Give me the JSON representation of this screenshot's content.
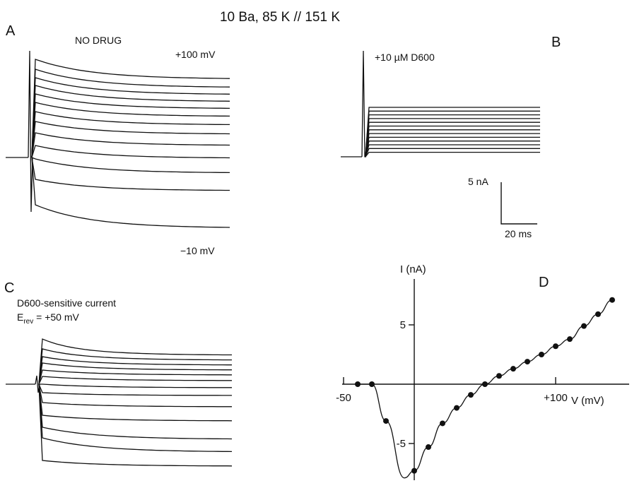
{
  "figure": {
    "title": "10 Ba, 85 K // 151 K",
    "colors": {
      "ink": "#111111",
      "background": "#ffffff"
    }
  },
  "panels": {
    "A": {
      "letter": "A",
      "label": "NO DRUG",
      "top_voltage": "+100 mV",
      "bottom_voltage": "−10 mV"
    },
    "B": {
      "letter": "B",
      "label": "+10 µM D600"
    },
    "scale_bar": {
      "current": "5 nA",
      "time": "20 ms"
    },
    "C": {
      "letter": "C",
      "label_line1": "D600-sensitive current",
      "label_line2": "E",
      "label_line2_sub": "rev",
      "label_line2_rest": " = +50 mV"
    },
    "D": {
      "letter": "D"
    }
  },
  "chart_data": {
    "type": "line",
    "panel": "D",
    "xlabel": "V (mV)",
    "ylabel": "I (nA)",
    "x_ticks": [
      -50,
      100
    ],
    "x_tick_labels": [
      "-50",
      "+100"
    ],
    "y_ticks": [
      5,
      -5
    ],
    "y_tick_labels": [
      "5",
      "-5"
    ],
    "xlim": [
      -55,
      150
    ],
    "ylim": [
      -8.2,
      8.5
    ],
    "series": [
      {
        "points": [
          {
            "x": -40,
            "y": 0
          },
          {
            "x": -30,
            "y": 0
          },
          {
            "x": -20,
            "y": -3.1
          },
          {
            "x": 0,
            "y": -7.3
          },
          {
            "x": 10,
            "y": -5.3
          },
          {
            "x": 20,
            "y": -3.3
          },
          {
            "x": 30,
            "y": -2.0
          },
          {
            "x": 40,
            "y": -0.9
          },
          {
            "x": 50,
            "y": 0
          },
          {
            "x": 60,
            "y": 0.7
          },
          {
            "x": 70,
            "y": 1.3
          },
          {
            "x": 80,
            "y": 1.9
          },
          {
            "x": 90,
            "y": 2.5
          },
          {
            "x": 100,
            "y": 3.2
          },
          {
            "x": 110,
            "y": 3.8
          },
          {
            "x": 120,
            "y": 4.9
          },
          {
            "x": 130,
            "y": 5.9
          },
          {
            "x": 140,
            "y": 7.1
          }
        ],
        "minimum": {
          "x": -7,
          "y": -7.9
        }
      }
    ]
  }
}
